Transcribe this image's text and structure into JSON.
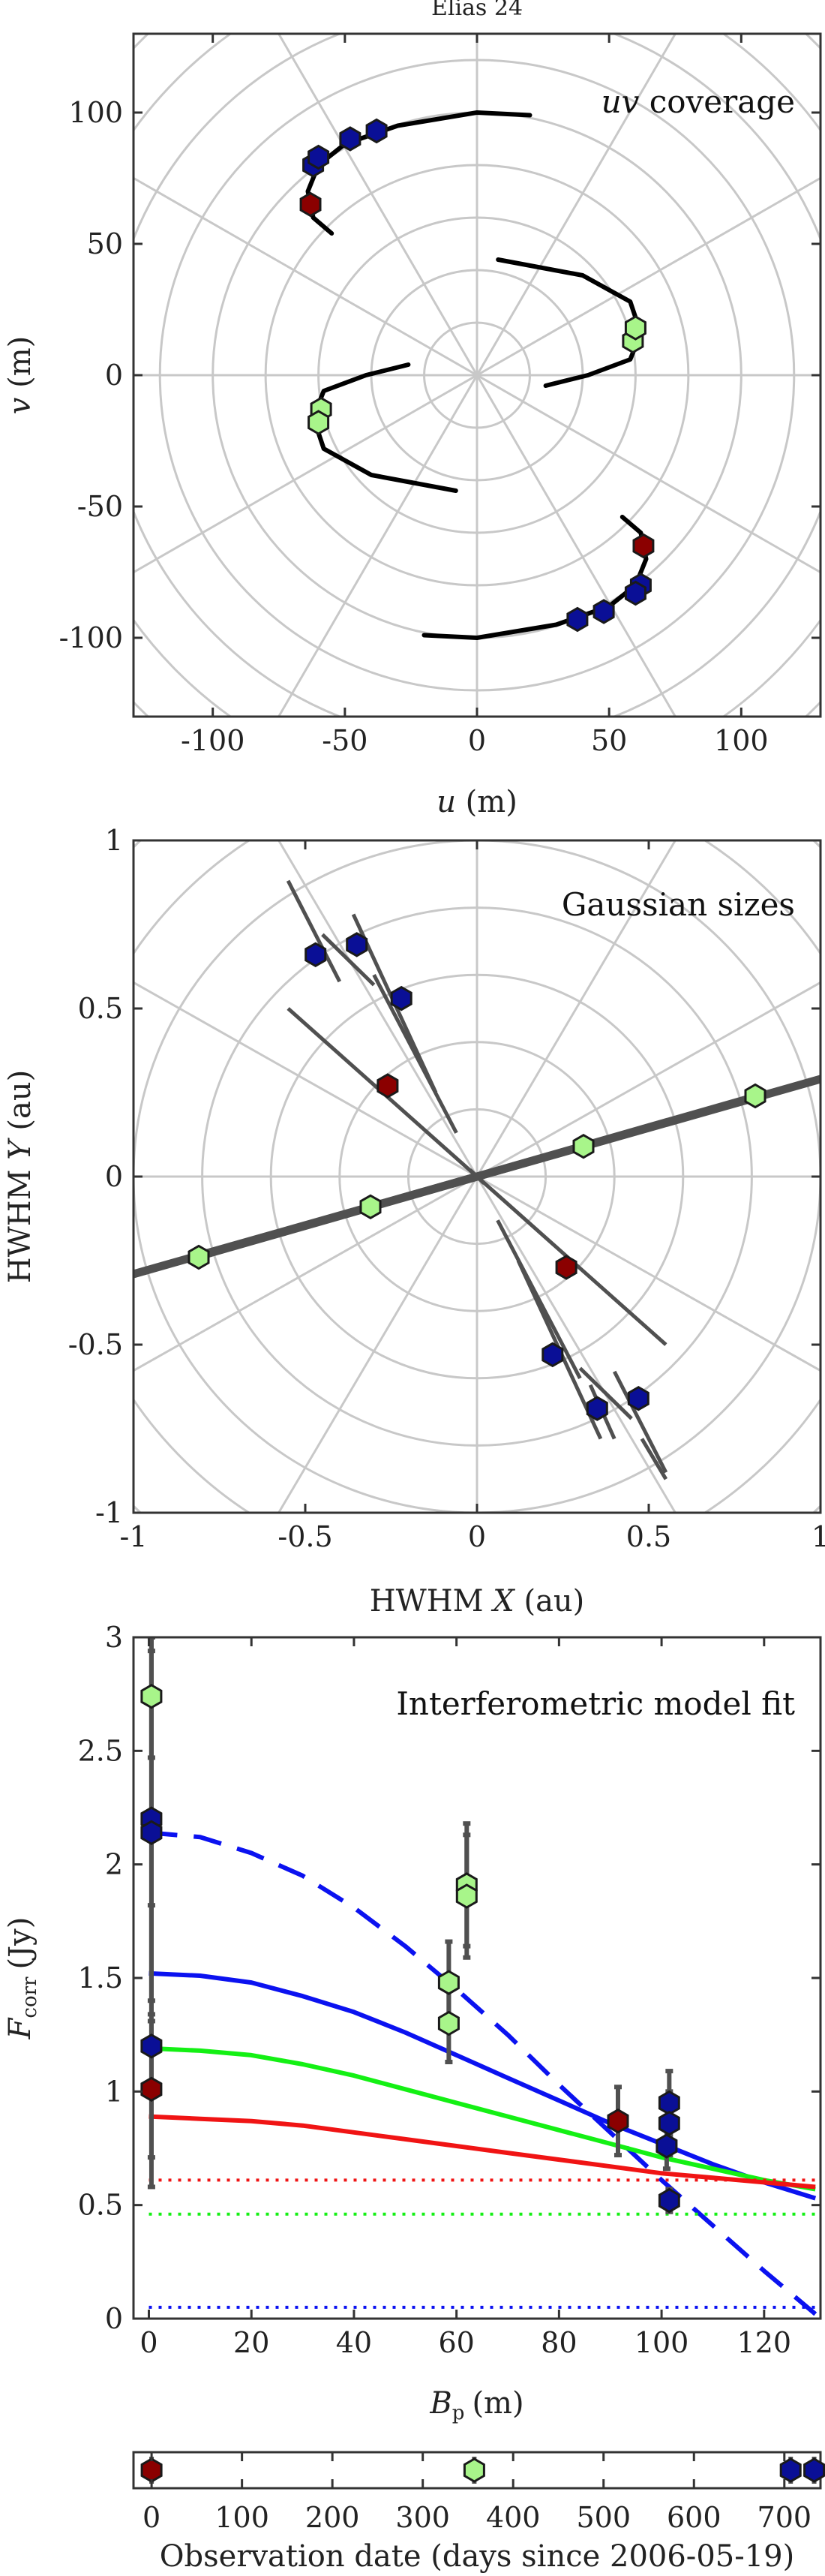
{
  "figure_title": "Elias 24",
  "colors": {
    "blue_marker": "#0a0f96",
    "green_marker": "#a8f58a",
    "red_marker": "#8b0000",
    "blue_line": "#0b12f0",
    "green_line": "#14f014",
    "red_line": "#f01414",
    "grid": "#c8c8c8",
    "track": "#000000",
    "error_bar": "#505050"
  },
  "chart_data": [
    {
      "id": "uv",
      "type": "scatter",
      "title": "",
      "annotation_prefix": "uv",
      "annotation_suffix": "coverage",
      "xlabel_var": "u",
      "xlabel_unit": "(m)",
      "ylabel_var": "v",
      "ylabel_unit": "(m)",
      "xlim": [
        -130,
        130
      ],
      "ylim": [
        -130,
        130
      ],
      "xticks": [
        -100,
        -50,
        0,
        50,
        100
      ],
      "yticks": [
        -100,
        -50,
        0,
        50,
        100
      ],
      "polar_grid": {
        "radii": [
          20,
          40,
          60,
          80,
          100,
          120,
          140,
          160,
          180
        ],
        "spoke_deg": 30
      },
      "tracks": [
        {
          "points": [
            [
              20,
              99
            ],
            [
              0,
              100
            ],
            [
              -30,
              95
            ],
            [
              -50,
              88
            ],
            [
              -60,
              80
            ],
            [
              -64,
              70
            ],
            [
              -62,
              60
            ],
            [
              -55,
              54
            ]
          ]
        },
        {
          "points": [
            [
              -20,
              -99
            ],
            [
              0,
              -100
            ],
            [
              30,
              -95
            ],
            [
              50,
              -88
            ],
            [
              60,
              -80
            ],
            [
              64,
              -70
            ],
            [
              62,
              -60
            ],
            [
              55,
              -54
            ]
          ]
        },
        {
          "points": [
            [
              8,
              44
            ],
            [
              40,
              38
            ],
            [
              58,
              28
            ],
            [
              62,
              16
            ],
            [
              58,
              6
            ],
            [
              42,
              0
            ],
            [
              26,
              -4
            ]
          ]
        },
        {
          "points": [
            [
              -8,
              -44
            ],
            [
              -40,
              -38
            ],
            [
              -58,
              -28
            ],
            [
              -62,
              -16
            ],
            [
              -58,
              -6
            ],
            [
              -42,
              0
            ],
            [
              -26,
              4
            ]
          ]
        }
      ],
      "points": [
        {
          "x": -63,
          "y": 65,
          "group": "red"
        },
        {
          "x": -62,
          "y": 80,
          "group": "blue"
        },
        {
          "x": -60,
          "y": 83,
          "group": "blue"
        },
        {
          "x": -48,
          "y": 90,
          "group": "blue"
        },
        {
          "x": -38,
          "y": 93,
          "group": "blue"
        },
        {
          "x": 63,
          "y": -65,
          "group": "red"
        },
        {
          "x": 62,
          "y": -80,
          "group": "blue"
        },
        {
          "x": 60,
          "y": -83,
          "group": "blue"
        },
        {
          "x": 48,
          "y": -90,
          "group": "blue"
        },
        {
          "x": 38,
          "y": -93,
          "group": "blue"
        },
        {
          "x": 59,
          "y": 13,
          "group": "green"
        },
        {
          "x": 60,
          "y": 18,
          "group": "green"
        },
        {
          "x": -59,
          "y": -13,
          "group": "green"
        },
        {
          "x": -60,
          "y": -18,
          "group": "green"
        }
      ]
    },
    {
      "id": "sizes",
      "type": "scatter",
      "title": "",
      "annotation": "Gaussian sizes",
      "xlabel_prefix": "HWHM",
      "xlabel_var": "X",
      "xlabel_unit": "(au)",
      "ylabel_prefix": "HWHM",
      "ylabel_var": "Y",
      "ylabel_unit": "(au)",
      "xlim": [
        -1,
        1
      ],
      "ylim": [
        -1,
        1
      ],
      "xticks": [
        -1,
        -0.5,
        0,
        0.5,
        1
      ],
      "yticks": [
        -1,
        -0.5,
        0,
        0.5,
        1
      ],
      "polar_grid": {
        "radii": [
          0.2,
          0.4,
          0.6,
          0.8,
          1.0,
          1.2,
          1.4
        ],
        "spoke_deg": 30
      },
      "error_lines": [
        {
          "x1": -0.82,
          "y1": -0.24,
          "x2": 0.82,
          "y2": 0.24,
          "width": 11
        },
        {
          "x1": -1.0,
          "y1": -0.29,
          "x2": 1.0,
          "y2": 0.29,
          "width": 11
        },
        {
          "x1": -0.3,
          "y1": 0.6,
          "x2": -0.06,
          "y2": 0.13,
          "width": 5
        },
        {
          "x1": 0.3,
          "y1": -0.6,
          "x2": 0.06,
          "y2": -0.13,
          "width": 5
        },
        {
          "x1": -0.45,
          "y1": 0.72,
          "x2": -0.3,
          "y2": 0.57,
          "width": 5
        },
        {
          "x1": 0.45,
          "y1": -0.72,
          "x2": 0.3,
          "y2": -0.57,
          "width": 5
        },
        {
          "x1": -0.55,
          "y1": 0.88,
          "x2": -0.4,
          "y2": 0.58,
          "width": 5
        },
        {
          "x1": 0.55,
          "y1": -0.88,
          "x2": 0.4,
          "y2": -0.58,
          "width": 5
        },
        {
          "x1": -0.36,
          "y1": 0.78,
          "x2": -0.12,
          "y2": 0.25,
          "width": 5
        },
        {
          "x1": 0.36,
          "y1": -0.78,
          "x2": 0.12,
          "y2": -0.25,
          "width": 5
        },
        {
          "x1": -0.55,
          "y1": 0.5,
          "x2": 0.0,
          "y2": 0.0,
          "width": 5
        },
        {
          "x1": 0.55,
          "y1": -0.5,
          "x2": 0.0,
          "y2": 0.0,
          "width": 5
        },
        {
          "x1": -0.02,
          "y1": 0.02,
          "x2": 0.02,
          "y2": -0.02,
          "width": 5
        },
        {
          "x1": 0.55,
          "y1": -0.9,
          "x2": 0.48,
          "y2": -0.78,
          "width": 5
        },
        {
          "x1": 0.4,
          "y1": -0.78,
          "x2": 0.33,
          "y2": -0.62,
          "width": 5
        }
      ],
      "points": [
        {
          "x": -0.47,
          "y": 0.66,
          "group": "blue"
        },
        {
          "x": 0.47,
          "y": -0.66,
          "group": "blue"
        },
        {
          "x": -0.35,
          "y": 0.69,
          "group": "blue"
        },
        {
          "x": 0.35,
          "y": -0.69,
          "group": "blue"
        },
        {
          "x": -0.22,
          "y": 0.53,
          "group": "blue"
        },
        {
          "x": 0.22,
          "y": -0.53,
          "group": "blue"
        },
        {
          "x": -0.26,
          "y": 0.27,
          "group": "red"
        },
        {
          "x": 0.26,
          "y": -0.27,
          "group": "red"
        },
        {
          "x": 0.31,
          "y": 0.09,
          "group": "green"
        },
        {
          "x": -0.31,
          "y": -0.09,
          "group": "green"
        },
        {
          "x": 0.81,
          "y": 0.24,
          "group": "green"
        },
        {
          "x": -0.81,
          "y": -0.24,
          "group": "green"
        }
      ]
    },
    {
      "id": "fit",
      "type": "line",
      "title": "",
      "annotation": "Interferometric model fit",
      "xlabel_var": "B",
      "xlabel_sub": "p",
      "xlabel_unit": "(m)",
      "ylabel_var": "F",
      "ylabel_sub": "corr",
      "ylabel_unit": "(Jy)",
      "xlim": [
        -3,
        131
      ],
      "ylim": [
        0,
        3
      ],
      "xticks": [
        0,
        20,
        40,
        60,
        80,
        100,
        120
      ],
      "yticks": [
        0,
        0.5,
        1,
        1.5,
        2,
        2.5,
        3
      ],
      "curves": [
        {
          "color": "blue",
          "style": "dashed",
          "x": [
            0,
            10,
            20,
            30,
            40,
            50,
            60,
            70,
            80,
            90,
            100,
            110,
            120,
            130
          ],
          "y": [
            2.14,
            2.12,
            2.05,
            1.95,
            1.81,
            1.64,
            1.45,
            1.25,
            1.03,
            0.82,
            0.61,
            0.41,
            0.21,
            0.02
          ]
        },
        {
          "color": "blue",
          "style": "solid",
          "x": [
            0,
            10,
            20,
            30,
            40,
            50,
            60,
            70,
            80,
            90,
            100,
            110,
            120,
            130
          ],
          "y": [
            1.52,
            1.51,
            1.48,
            1.42,
            1.35,
            1.26,
            1.16,
            1.06,
            0.96,
            0.86,
            0.77,
            0.68,
            0.6,
            0.53
          ]
        },
        {
          "color": "green",
          "style": "solid",
          "x": [
            0,
            10,
            20,
            30,
            40,
            50,
            60,
            70,
            80,
            90,
            100,
            110,
            120,
            130
          ],
          "y": [
            1.19,
            1.18,
            1.16,
            1.12,
            1.07,
            1.01,
            0.95,
            0.89,
            0.83,
            0.77,
            0.71,
            0.66,
            0.61,
            0.57
          ]
        },
        {
          "color": "red",
          "style": "solid",
          "x": [
            0,
            10,
            20,
            30,
            40,
            50,
            60,
            70,
            80,
            90,
            100,
            110,
            120,
            130
          ],
          "y": [
            0.89,
            0.88,
            0.87,
            0.85,
            0.82,
            0.79,
            0.76,
            0.73,
            0.7,
            0.67,
            0.64,
            0.62,
            0.6,
            0.58
          ]
        },
        {
          "color": "red",
          "style": "dotted",
          "x": [
            0,
            130
          ],
          "y": [
            0.61,
            0.61
          ]
        },
        {
          "color": "green",
          "style": "dotted",
          "x": [
            0,
            130
          ],
          "y": [
            0.46,
            0.46
          ]
        },
        {
          "color": "blue",
          "style": "dotted",
          "x": [
            0,
            130
          ],
          "y": [
            0.05,
            0.05
          ]
        }
      ],
      "points": [
        {
          "x": 0.5,
          "y": 2.74,
          "err": 0.27,
          "group": "green"
        },
        {
          "x": 0.5,
          "y": 2.2,
          "err": 0.8,
          "group": "blue"
        },
        {
          "x": 0.5,
          "y": 2.14,
          "err": 0.8,
          "group": "blue"
        },
        {
          "x": 0.5,
          "y": 1.2,
          "err": 0.62,
          "group": "blue"
        },
        {
          "x": 0.5,
          "y": 1.01,
          "err": 0.3,
          "group": "red"
        },
        {
          "x": 58.5,
          "y": 1.48,
          "err": 0.18,
          "group": "green"
        },
        {
          "x": 58.5,
          "y": 1.3,
          "err": 0.17,
          "group": "green"
        },
        {
          "x": 62,
          "y": 1.91,
          "err": 0.27,
          "group": "green"
        },
        {
          "x": 62,
          "y": 1.86,
          "err": 0.27,
          "group": "green"
        },
        {
          "x": 91.5,
          "y": 0.87,
          "err": 0.15,
          "group": "red"
        },
        {
          "x": 101.5,
          "y": 0.95,
          "err": 0.14,
          "group": "blue"
        },
        {
          "x": 101.5,
          "y": 0.86,
          "err": 0.14,
          "group": "blue"
        },
        {
          "x": 101,
          "y": 0.76,
          "err": 0.1,
          "group": "blue"
        },
        {
          "x": 101.5,
          "y": 0.52,
          "err": 0.05,
          "group": "blue"
        }
      ]
    },
    {
      "id": "dates",
      "type": "scatter",
      "title": "",
      "xlabel": "Observation date (days since 2006-05-19)",
      "xlim": [
        -20,
        740
      ],
      "xticks": [
        0,
        100,
        200,
        300,
        400,
        500,
        600,
        700
      ],
      "points": [
        {
          "x": 0,
          "group": "red"
        },
        {
          "x": 357,
          "group": "green"
        },
        {
          "x": 707,
          "group": "blue"
        },
        {
          "x": 733,
          "group": "blue"
        }
      ]
    }
  ]
}
